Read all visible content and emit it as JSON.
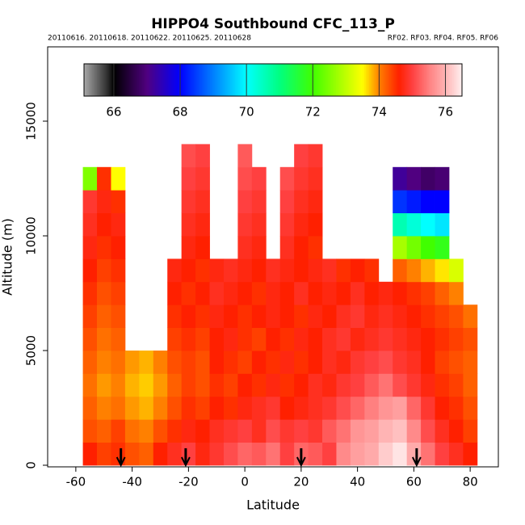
{
  "chart_data": {
    "type": "heatmap",
    "title": "HIPPO4 Southbound CFC_113_P",
    "subtitle_left": "20110616. 20110618. 20110622. 20110625. 20110628",
    "subtitle_right": "RF02. RF03. RF04. RF05. RF06",
    "x_label": "Latitude",
    "y_label": "Altitude (m)",
    "xlim": [
      -70,
      90
    ],
    "ylim": [
      -70,
      18240
    ],
    "xticks": [
      -60,
      -40,
      -20,
      0,
      20,
      40,
      60,
      80
    ],
    "yticks": [
      0,
      5000,
      10000,
      15000
    ],
    "xbins": [
      -57.5,
      -52.5,
      -47.5,
      -42.5,
      -37.5,
      -32.5,
      -27.5,
      -22.5,
      -17.5,
      -12.5,
      -7.5,
      -2.5,
      2.5,
      7.5,
      12.5,
      17.5,
      22.5,
      27.5,
      32.5,
      37.5,
      42.5,
      47.5,
      52.5,
      57.5,
      62.5,
      67.5,
      72.5,
      77.5,
      82.5
    ],
    "ybins": [
      0,
      1000,
      2000,
      3000,
      4000,
      5000,
      6000,
      7000,
      8000,
      9000,
      10000,
      11000,
      12000,
      13000,
      14000
    ],
    "z": [
      [
        74.6,
        74.4,
        74.5,
        74.3,
        74.2,
        74.6,
        74.8,
        75.0,
        74.7,
        74.9,
        75.1,
        75.3,
        75.2,
        75.4,
        75.0,
        75.3,
        75.2,
        75.0,
        75.6,
        75.8,
        75.9,
        76.2,
        76.4,
        75.9,
        75.4,
        75.0,
        74.8,
        74.6
      ],
      [
        74.3,
        74.2,
        74.4,
        74.1,
        74.0,
        74.3,
        74.5,
        74.7,
        74.6,
        74.8,
        74.9,
        75.0,
        74.8,
        75.1,
        74.9,
        75.0,
        74.9,
        75.2,
        75.4,
        75.7,
        75.8,
        76.0,
        76.1,
        75.6,
        75.1,
        74.8,
        74.6,
        74.4
      ],
      [
        74.2,
        74.0,
        74.1,
        73.9,
        73.8,
        74.0,
        74.3,
        74.5,
        74.4,
        74.6,
        74.5,
        74.7,
        74.8,
        74.9,
        74.6,
        74.7,
        74.8,
        74.9,
        75.1,
        75.3,
        75.5,
        75.7,
        75.8,
        75.3,
        74.9,
        74.6,
        74.5,
        74.3
      ],
      [
        74.1,
        73.9,
        74.0,
        73.8,
        73.7,
        73.9,
        74.2,
        74.4,
        74.3,
        74.5,
        74.4,
        74.6,
        74.5,
        74.7,
        74.5,
        74.6,
        74.8,
        74.7,
        74.9,
        75.0,
        75.2,
        75.4,
        75.1,
        74.9,
        74.7,
        74.5,
        74.4,
        74.2
      ],
      [
        74.2,
        74.0,
        74.1,
        73.9,
        73.8,
        74.0,
        74.3,
        74.4,
        74.3,
        74.6,
        74.5,
        74.4,
        74.6,
        74.5,
        74.7,
        74.5,
        74.6,
        74.8,
        74.7,
        74.9,
        75.0,
        75.1,
        74.9,
        74.8,
        74.6,
        74.4,
        74.3,
        74.2
      ],
      [
        74.3,
        74.1,
        74.2,
        null,
        null,
        null,
        74.4,
        74.5,
        74.4,
        74.6,
        74.7,
        74.5,
        74.4,
        74.6,
        74.5,
        74.7,
        74.6,
        74.8,
        74.9,
        74.7,
        74.8,
        74.9,
        74.8,
        74.7,
        74.6,
        74.5,
        74.4,
        74.3
      ],
      [
        74.4,
        74.2,
        74.3,
        null,
        null,
        null,
        74.5,
        74.6,
        74.5,
        74.7,
        74.6,
        74.5,
        74.6,
        74.7,
        74.6,
        74.5,
        74.7,
        74.6,
        74.8,
        74.9,
        74.7,
        74.8,
        74.7,
        74.6,
        74.5,
        74.4,
        74.3,
        74.1
      ],
      [
        74.5,
        74.3,
        74.4,
        null,
        null,
        null,
        74.6,
        74.5,
        74.6,
        74.8,
        74.7,
        74.6,
        74.5,
        74.7,
        74.6,
        74.8,
        74.6,
        74.7,
        74.6,
        74.8,
        74.6,
        74.7,
        74.6,
        74.5,
        74.4,
        74.2,
        74.0,
        null
      ],
      [
        74.6,
        74.4,
        74.5,
        null,
        null,
        null,
        74.7,
        74.6,
        74.5,
        74.7,
        74.8,
        74.7,
        74.6,
        74.8,
        74.7,
        74.6,
        74.7,
        74.8,
        74.5,
        74.6,
        74.5,
        null,
        74.2,
        74.0,
        73.8,
        73.6,
        73.2,
        null
      ],
      [
        74.7,
        74.5,
        74.6,
        null,
        null,
        null,
        null,
        74.7,
        74.6,
        null,
        null,
        74.8,
        74.7,
        null,
        74.8,
        74.6,
        74.5,
        null,
        null,
        null,
        null,
        null,
        72.8,
        72.4,
        72.0,
        71.8,
        null,
        null
      ],
      [
        74.8,
        74.6,
        74.7,
        null,
        null,
        null,
        null,
        74.8,
        74.7,
        null,
        null,
        74.9,
        74.8,
        null,
        74.9,
        74.7,
        74.6,
        null,
        null,
        null,
        null,
        null,
        70.6,
        70.3,
        70.0,
        69.8,
        null,
        null
      ],
      [
        74.9,
        74.7,
        74.5,
        null,
        null,
        null,
        null,
        74.9,
        74.8,
        null,
        null,
        75.0,
        74.9,
        null,
        75.0,
        74.8,
        74.7,
        null,
        null,
        null,
        null,
        null,
        68.4,
        68.2,
        68.0,
        68.0,
        null,
        null
      ],
      [
        72.5,
        74.5,
        73.5,
        null,
        null,
        null,
        null,
        75.0,
        74.9,
        null,
        null,
        75.1,
        75.0,
        null,
        75.1,
        74.9,
        74.8,
        null,
        null,
        null,
        null,
        null,
        67.2,
        67.0,
        66.8,
        66.9,
        null,
        null
      ],
      [
        null,
        null,
        null,
        null,
        null,
        null,
        null,
        75.1,
        75.0,
        null,
        null,
        75.2,
        null,
        null,
        null,
        75.0,
        74.9,
        null,
        null,
        null,
        null,
        null,
        null,
        null,
        null,
        null,
        null,
        null
      ]
    ],
    "colorbar": {
      "range": [
        65.1,
        76.5
      ],
      "ticks": [
        66,
        68,
        70,
        72,
        74,
        76
      ]
    },
    "colorscale": [
      [
        65.1,
        "#a8a8a8"
      ],
      [
        65.8,
        "#303030"
      ],
      [
        66,
        "#000000"
      ],
      [
        67,
        "#500080"
      ],
      [
        68,
        "#0000ff"
      ],
      [
        69,
        "#0080ff"
      ],
      [
        70,
        "#00ffff"
      ],
      [
        71,
        "#00ff80"
      ],
      [
        72,
        "#40ff00"
      ],
      [
        73,
        "#c0ff00"
      ],
      [
        73.5,
        "#ffff00"
      ],
      [
        74,
        "#ff8000"
      ],
      [
        74.6,
        "#ff2000"
      ],
      [
        75,
        "#ff4040"
      ],
      [
        75.5,
        "#ff8080"
      ],
      [
        76,
        "#ffb4b4"
      ],
      [
        76.5,
        "#fff0f0"
      ]
    ],
    "markers": [
      -44,
      -21,
      20,
      61
    ]
  }
}
